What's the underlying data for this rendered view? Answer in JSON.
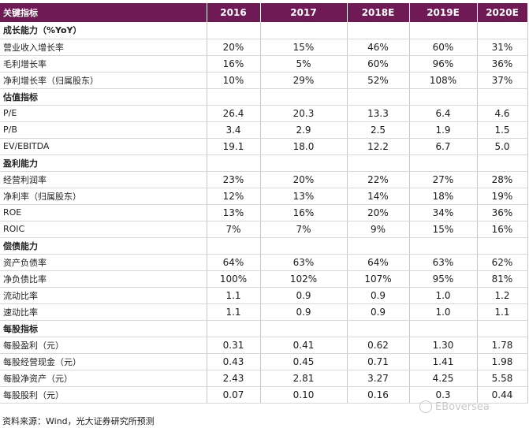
{
  "table": {
    "header": {
      "label": "关键指标",
      "years": [
        "2016",
        "2017",
        "2018E",
        "2019E",
        "2020E"
      ]
    },
    "sections": [
      {
        "title": "成长能力（%YoY）",
        "rows": [
          {
            "label": "营业收入增长率",
            "values": [
              "20%",
              "15%",
              "46%",
              "60%",
              "31%"
            ]
          },
          {
            "label": "毛利增长率",
            "values": [
              "16%",
              "5%",
              "60%",
              "96%",
              "36%"
            ]
          },
          {
            "label": "净利增长率（归属股东）",
            "values": [
              "10%",
              "29%",
              "52%",
              "108%",
              "37%"
            ]
          }
        ]
      },
      {
        "title": "估值指标",
        "rows": [
          {
            "label": "P/E",
            "values": [
              "26.4",
              "20.3",
              "13.3",
              "6.4",
              "4.6"
            ]
          },
          {
            "label": "P/B",
            "values": [
              "3.4",
              "2.9",
              "2.5",
              "1.9",
              "1.5"
            ]
          },
          {
            "label": "EV/EBITDA",
            "values": [
              "19.1",
              "18.0",
              "12.2",
              "6.7",
              "5.0"
            ]
          }
        ]
      },
      {
        "title": "盈利能力",
        "rows": [
          {
            "label": "经营利润率",
            "values": [
              "23%",
              "20%",
              "22%",
              "27%",
              "28%"
            ]
          },
          {
            "label": "净利率（归属股东）",
            "values": [
              "12%",
              "13%",
              "14%",
              "18%",
              "19%"
            ]
          },
          {
            "label": "ROE",
            "values": [
              "13%",
              "16%",
              "20%",
              "34%",
              "36%"
            ]
          },
          {
            "label": "ROIC",
            "values": [
              "7%",
              "7%",
              "9%",
              "15%",
              "16%"
            ]
          }
        ]
      },
      {
        "title": "偿债能力",
        "rows": [
          {
            "label": "资产负债率",
            "values": [
              "64%",
              "63%",
              "64%",
              "63%",
              "62%"
            ]
          },
          {
            "label": "净负债比率",
            "values": [
              "100%",
              "102%",
              "107%",
              "95%",
              "81%"
            ]
          },
          {
            "label": "流动比率",
            "values": [
              "1.1",
              "0.9",
              "0.9",
              "1.0",
              "1.2"
            ]
          },
          {
            "label": "速动比率",
            "values": [
              "1.1",
              "0.9",
              "0.9",
              "1.0",
              "1.1"
            ]
          }
        ]
      },
      {
        "title": "每股指标",
        "rows": [
          {
            "label": "每股盈利（元）",
            "values": [
              "0.31",
              "0.41",
              "0.62",
              "1.30",
              "1.78"
            ]
          },
          {
            "label": "每股经营现金（元）",
            "values": [
              "0.43",
              "0.45",
              "0.71",
              "1.41",
              "1.98"
            ]
          },
          {
            "label": "每股净资产（元）",
            "values": [
              "2.43",
              "2.81",
              "3.27",
              "4.25",
              "5.58"
            ]
          },
          {
            "label": "每股股利（元）",
            "values": [
              "0.07",
              "0.10",
              "0.16",
              "0.3",
              "0.44"
            ]
          }
        ]
      }
    ]
  },
  "source_note": "资料来源：Wind，光大证券研究所预测",
  "watermark": "EBoversea"
}
